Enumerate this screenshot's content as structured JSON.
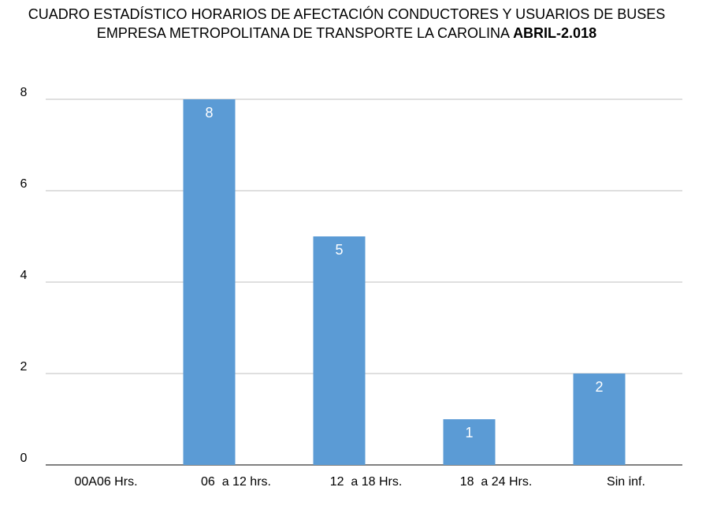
{
  "chart_data": {
    "type": "bar",
    "title": "CUADRO ESTADÍSTICO HORARIOS DE AFECTACIÓN CONDUCTORES Y USUARIOS DE BUSES EMPRESA METROPOLITANA DE TRANSPORTE LA CAROLINA",
    "title_emphasis": "ABRIL-2.018",
    "categories": [
      "00A06 Hrs.",
      "06  a 12 hrs.",
      "12  a 18 Hrs.",
      "18  a 24 Hrs.",
      "Sin inf."
    ],
    "values": [
      0,
      8,
      5,
      1,
      2
    ],
    "color": "#5b9bd5",
    "ylim": [
      0,
      8
    ],
    "yticks": [
      0,
      2,
      4,
      6,
      8
    ],
    "grid": true
  }
}
